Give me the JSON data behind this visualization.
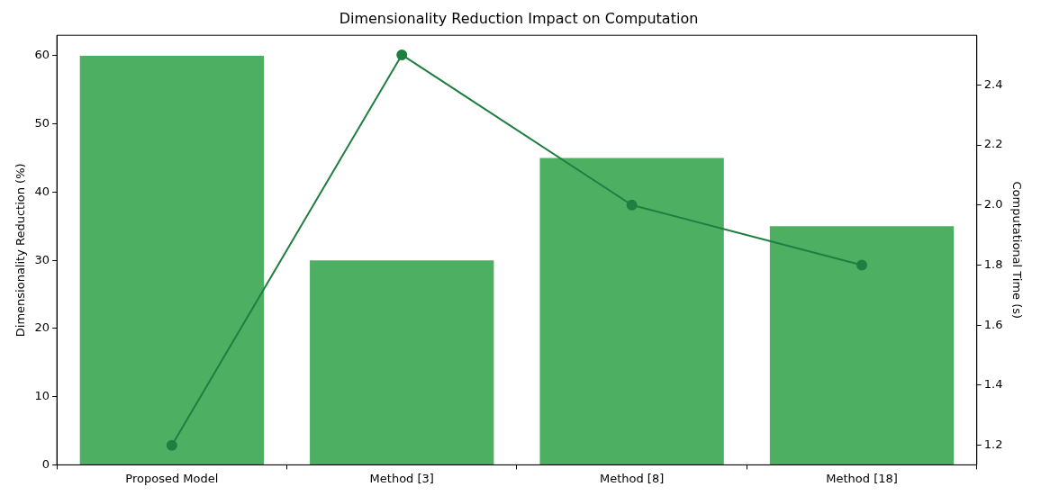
{
  "chart_data": {
    "type": "bar",
    "title": "Dimensionality Reduction Impact on Computation",
    "ylabel": "Dimensionality Reduction (%)",
    "y2label": "Computational Time (s)",
    "categories": [
      "Proposed Model",
      "Method [3]",
      "Method [8]",
      "Method [18]"
    ],
    "series": [
      {
        "color": "#4caf62",
        "values": [
          60,
          30,
          45,
          35
        ]
      },
      {
        "type": "line",
        "axis": "y2",
        "color": "#1e7f40",
        "marker": "circle",
        "line_style": "solid",
        "values": [
          1.2,
          2.5,
          2.0,
          1.8
        ]
      }
    ],
    "ylim": [
      0,
      63
    ],
    "yticks": [
      0,
      10,
      20,
      30,
      40,
      50,
      60
    ],
    "y2lim": [
      1.135,
      2.565
    ],
    "y2ticks": [
      1.2,
      1.4,
      1.6,
      1.8,
      {
        "value": 2,
        "label": "2.0"
      },
      2.2,
      2.4
    ],
    "grid": false,
    "legend": false
  }
}
